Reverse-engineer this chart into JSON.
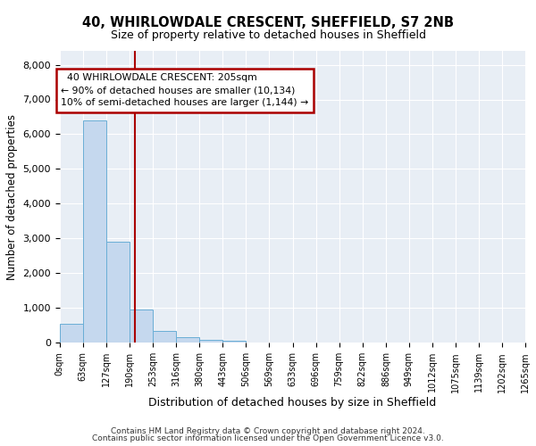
{
  "title": "40, WHIRLOWDALE CRESCENT, SHEFFIELD, S7 2NB",
  "subtitle": "Size of property relative to detached houses in Sheffield",
  "xlabel": "Distribution of detached houses by size in Sheffield",
  "ylabel": "Number of detached properties",
  "bar_color": "#c5d8ee",
  "bar_edge_color": "#6aaed6",
  "bin_edges": [
    0,
    63,
    127,
    190,
    253,
    316,
    380,
    443,
    506,
    569,
    633,
    696,
    759,
    822,
    886,
    949,
    1012,
    1075,
    1139,
    1202,
    1265
  ],
  "bar_heights": [
    550,
    6400,
    2900,
    950,
    350,
    150,
    75,
    50,
    0,
    0,
    0,
    0,
    0,
    0,
    0,
    0,
    0,
    0,
    0,
    0
  ],
  "red_line_x": 205,
  "annotation_line1": "  40 WHIRLOWDALE CRESCENT: 205sqm",
  "annotation_line2": "← 90% of detached houses are smaller (10,134)",
  "annotation_line3": "10% of semi-detached houses are larger (1,144) →",
  "annotation_box_color": "#aa0000",
  "ylim": [
    0,
    8400
  ],
  "yticks": [
    0,
    1000,
    2000,
    3000,
    4000,
    5000,
    6000,
    7000,
    8000
  ],
  "background_color": "#ffffff",
  "plot_bg_color": "#e8eef5",
  "footer_line1": "Contains HM Land Registry data © Crown copyright and database right 2024.",
  "footer_line2": "Contains public sector information licensed under the Open Government Licence v3.0.",
  "tick_labels": [
    "0sqm",
    "63sqm",
    "127sqm",
    "190sqm",
    "253sqm",
    "316sqm",
    "380sqm",
    "443sqm",
    "506sqm",
    "569sqm",
    "633sqm",
    "696sqm",
    "759sqm",
    "822sqm",
    "886sqm",
    "949sqm",
    "1012sqm",
    "1075sqm",
    "1139sqm",
    "1202sqm",
    "1265sqm"
  ]
}
